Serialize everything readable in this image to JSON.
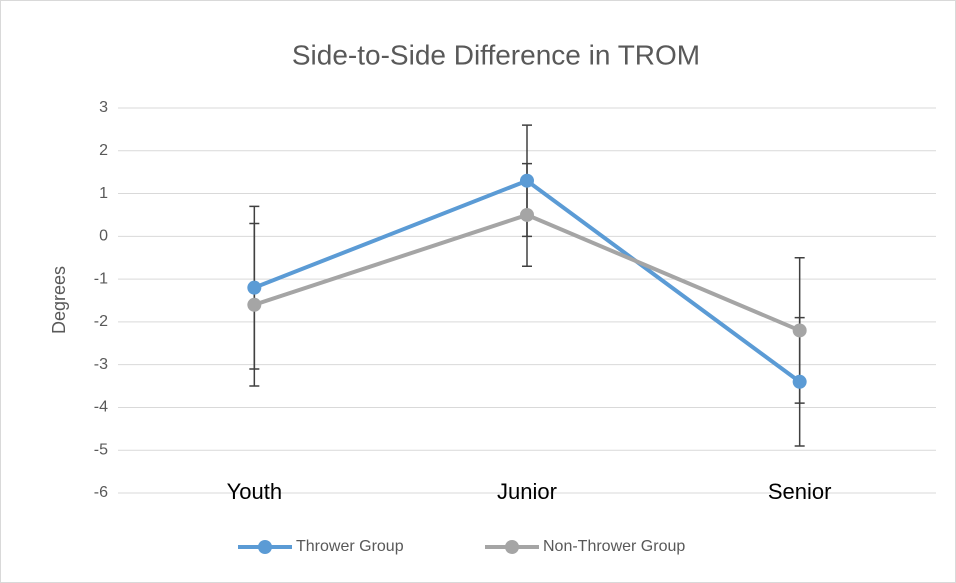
{
  "chart_data": {
    "type": "line",
    "title": "Side-to-Side Difference in TROM",
    "y_label": "Degrees",
    "categories": [
      "Youth",
      "Junior",
      "Senior"
    ],
    "series": [
      {
        "name": "Thrower Group",
        "color": "#5b9bd5",
        "values": [
          -1.2,
          1.3,
          -3.4
        ],
        "errors": [
          1.9,
          1.3,
          1.5
        ]
      },
      {
        "name": "Non-Thrower Group",
        "color": "#a5a5a5",
        "values": [
          -1.6,
          0.5,
          -2.2
        ],
        "errors": [
          1.9,
          1.2,
          1.7
        ]
      }
    ],
    "ylim": [
      -6,
      3
    ],
    "yticks": [
      -6,
      -5,
      -4,
      -3,
      -2,
      -1,
      0,
      1,
      2,
      3
    ],
    "grid": true,
    "legend": "bottom"
  }
}
